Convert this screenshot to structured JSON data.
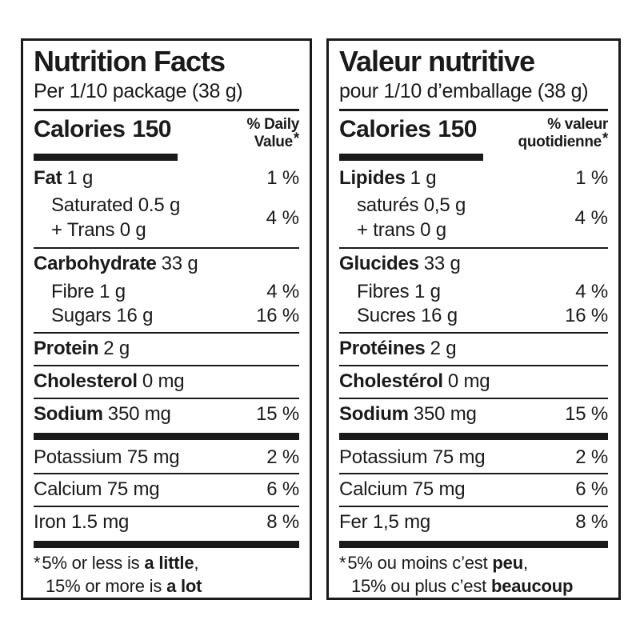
{
  "colors": {
    "text": "#1a1a1a",
    "background": "#ffffff"
  },
  "panels": [
    {
      "lang": "english",
      "title": "Nutrition Facts",
      "serving": "Per 1/10 package (38 g)",
      "calories": {
        "label": "Calories",
        "value": "150"
      },
      "dv_header": {
        "line1": "% Daily",
        "line2": "Value",
        "asterisk": "*"
      },
      "fat": {
        "label": "Fat",
        "amount": "1 g",
        "dv": "1 %"
      },
      "saturated": {
        "line1": "Saturated 0.5 g",
        "line2": "+ Trans 0 g",
        "dv": "4 %"
      },
      "carbohydrate": {
        "label": "Carbohydrate",
        "amount": "33 g"
      },
      "fibre": {
        "text": "Fibre 1 g",
        "dv": "4 %"
      },
      "sugars": {
        "text": "Sugars 16 g",
        "dv": "16 %"
      },
      "protein": {
        "label": "Protein",
        "amount": "2 g"
      },
      "cholesterol": {
        "label": "Cholesterol",
        "amount": "0 mg"
      },
      "sodium": {
        "label": "Sodium",
        "amount": "350 mg",
        "dv": "15 %"
      },
      "potassium": {
        "text": "Potassium 75 mg",
        "dv": "2 %"
      },
      "calcium": {
        "text": "Calcium 75 mg",
        "dv": "6 %"
      },
      "iron": {
        "text": "Iron 1.5 mg",
        "dv": "8 %"
      },
      "footnote": {
        "asterisk": "*",
        "line1_pre": "5% or less is ",
        "line1_bold": "a little",
        "line1_post": ",",
        "line2_pre": "15% or more is ",
        "line2_bold": "a lot"
      }
    },
    {
      "lang": "french",
      "title": "Valeur nutritive",
      "serving": "pour 1/10 d’emballage (38 g)",
      "calories": {
        "label": "Calories",
        "value": "150"
      },
      "dv_header": {
        "line1": "% valeur",
        "line2": "quotidienne",
        "asterisk": "*"
      },
      "fat": {
        "label": "Lipides",
        "amount": "1 g",
        "dv": "1 %"
      },
      "saturated": {
        "line1": "saturés 0,5 g",
        "line2": "+ trans 0 g",
        "dv": "4 %"
      },
      "carbohydrate": {
        "label": "Glucides",
        "amount": "33 g"
      },
      "fibre": {
        "text": "Fibres 1 g",
        "dv": "4 %"
      },
      "sugars": {
        "text": "Sucres 16 g",
        "dv": "16 %"
      },
      "protein": {
        "label": "Protéines",
        "amount": "2 g"
      },
      "cholesterol": {
        "label": "Cholestérol",
        "amount": "0 mg"
      },
      "sodium": {
        "label": "Sodium",
        "amount": "350 mg",
        "dv": "15 %"
      },
      "potassium": {
        "text": "Potassium 75 mg",
        "dv": "2 %"
      },
      "calcium": {
        "text": "Calcium 75 mg",
        "dv": "6 %"
      },
      "iron": {
        "text": "Fer 1,5 mg",
        "dv": "8 %"
      },
      "footnote": {
        "asterisk": "*",
        "line1_pre": "5% ou moins c’est ",
        "line1_bold": "peu",
        "line1_post": ",",
        "line2_pre": "15% ou plus c’est ",
        "line2_bold": "beaucoup"
      }
    }
  ]
}
